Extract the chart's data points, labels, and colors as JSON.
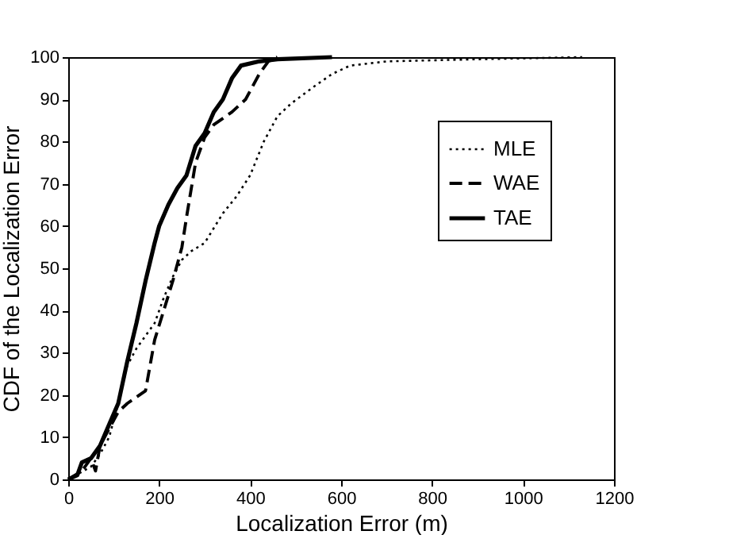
{
  "chart_data": {
    "type": "line",
    "xlabel": "Localization Error (m)",
    "ylabel": "CDF of the Localization Error",
    "xlim": [
      0,
      1200
    ],
    "ylim": [
      0,
      100
    ],
    "xticks": [
      0,
      200,
      400,
      600,
      800,
      1000,
      1200
    ],
    "yticks": [
      0,
      10,
      20,
      30,
      40,
      50,
      60,
      70,
      80,
      90,
      100
    ],
    "grid": false,
    "legend": "top right",
    "marker": "none",
    "series": [
      {
        "name": "MLE",
        "color": "#000000",
        "line_style": "dotted",
        "x": [
          0,
          50,
          70,
          90,
          110,
          130,
          150,
          170,
          190,
          210,
          230,
          250,
          270,
          300,
          340,
          370,
          400,
          430,
          460,
          490,
          540,
          580,
          620,
          700,
          900,
          1130
        ],
        "values": [
          0,
          3,
          6,
          10,
          18,
          27,
          31,
          34,
          37,
          43,
          48,
          52,
          54,
          56,
          63,
          67,
          72,
          80,
          86,
          89,
          93,
          96,
          98,
          99,
          99.5,
          100
        ]
      },
      {
        "name": "WAE",
        "color": "#000000",
        "line_style": "dashed",
        "x": [
          0,
          30,
          50,
          60,
          70,
          90,
          110,
          130,
          170,
          180,
          190,
          210,
          230,
          250,
          260,
          280,
          300,
          320,
          360,
          390,
          420,
          440,
          460
        ],
        "values": [
          0,
          2,
          5,
          2,
          8,
          12,
          16,
          18,
          21,
          27,
          33,
          40,
          47,
          55,
          62,
          75,
          81,
          84,
          87,
          90,
          96,
          99,
          100
        ]
      },
      {
        "name": "TAE",
        "color": "#000000",
        "line_style": "solid",
        "x": [
          0,
          20,
          30,
          50,
          70,
          90,
          110,
          130,
          150,
          170,
          190,
          200,
          220,
          240,
          260,
          280,
          300,
          320,
          340,
          360,
          380,
          420,
          460,
          580
        ],
        "values": [
          0,
          1,
          4,
          5,
          8,
          13,
          18,
          28,
          37,
          47,
          56,
          60,
          65,
          69,
          72,
          79,
          82,
          87,
          90,
          95,
          98,
          99,
          99.5,
          100
        ]
      }
    ]
  }
}
